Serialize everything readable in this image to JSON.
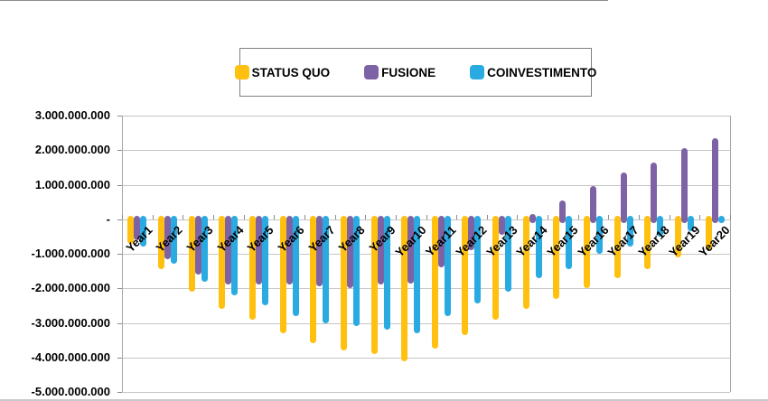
{
  "legend": {
    "items": [
      {
        "label": "STATUS QUO",
        "color": "#FFC010"
      },
      {
        "label": "FUSIONE",
        "color": "#7D63A5"
      },
      {
        "label": "COINVESTIMENTO",
        "color": "#29ABE2"
      }
    ]
  },
  "chart_data": {
    "type": "bar",
    "title": "",
    "categories": [
      "Year1",
      "Year2",
      "Year3",
      "Year4",
      "Year5",
      "Year6",
      "Year7",
      "Year8",
      "Year9",
      "Year10",
      "Year11",
      "Year12",
      "Year13",
      "Year14",
      "Year15",
      "Year16",
      "Year17",
      "Year18",
      "Year19",
      "Year20"
    ],
    "series": [
      {
        "name": "STATUS QUO",
        "color": "#FFC010",
        "values": [
          -700000000,
          -1450000000,
          -2100000000,
          -2600000000,
          -2900000000,
          -3300000000,
          -3600000000,
          -3800000000,
          -3900000000,
          -4100000000,
          -3750000000,
          -3350000000,
          -2900000000,
          -2600000000,
          -2300000000,
          -2000000000,
          -1700000000,
          -1450000000,
          -1100000000,
          -900000000
        ]
      },
      {
        "name": "FUSIONE",
        "color": "#7D63A5",
        "values": [
          -600000000,
          -1150000000,
          -1600000000,
          -1900000000,
          -1900000000,
          -1900000000,
          -1950000000,
          -2000000000,
          -1900000000,
          -1850000000,
          -1400000000,
          -900000000,
          -450000000,
          150000000,
          550000000,
          950000000,
          1350000000,
          1650000000,
          2050000000,
          2350000000
        ]
      },
      {
        "name": "COINVESTIMENTO",
        "color": "#29ABE2",
        "values": [
          -800000000,
          -1300000000,
          -1800000000,
          -2200000000,
          -2500000000,
          -2800000000,
          -3000000000,
          -3100000000,
          -3200000000,
          -3300000000,
          -2800000000,
          -2450000000,
          -2100000000,
          -1700000000,
          -1450000000,
          -1000000000,
          -800000000,
          -500000000,
          -350000000,
          100000000
        ]
      }
    ],
    "y_axis": {
      "min": -5000000000,
      "max": 3000000000,
      "step": 1000000000,
      "tick_labels": [
        "3.000.000.000",
        "2.000.000.000",
        "1.000.000.000",
        "-",
        "-1.000.000.000",
        "-2.000.000.000",
        "-3.000.000.000",
        "-4.000.000.000",
        "-5.000.000.000"
      ]
    },
    "xlabel": "",
    "ylabel": "",
    "grid": true,
    "legend_position": "top-center"
  },
  "colors": {
    "background": "#FFFFFF",
    "gridline": "#C6C6C6",
    "axis": "#8C8C8C",
    "plot_border": "#A6A6A6",
    "text": "#000000"
  }
}
